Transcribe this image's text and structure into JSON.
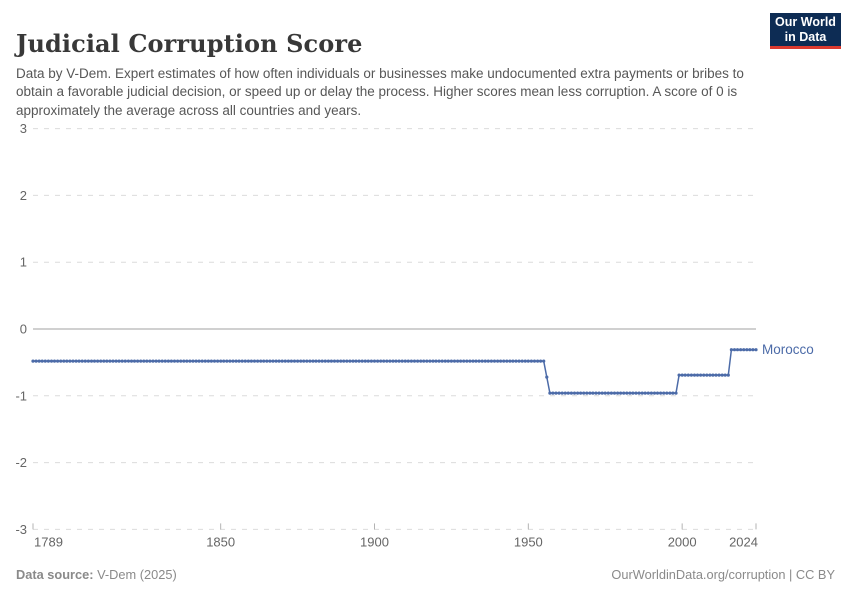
{
  "header": {
    "title": "Judicial Corruption Score",
    "subtitle": "Data by V-Dem. Expert estimates of how often individuals or businesses make undocumented extra payments or bribes to obtain a favorable judicial decision, or speed up or delay the process. Higher scores mean less corruption. A score of 0 is approximately the average across all countries and years.",
    "logo": {
      "line1": "Our World",
      "line2": "in Data",
      "background_color": "#0d2c54",
      "accent_color": "#dc3a2f"
    }
  },
  "footer": {
    "datasource_label": "Data source:",
    "datasource_value": " V-Dem (2025)",
    "credit": "OurWorldinData.org/corruption | CC BY"
  },
  "chart_data": {
    "type": "line",
    "title": "Judicial Corruption Score",
    "xlabel": "",
    "ylabel": "",
    "xlim": [
      1789,
      2024
    ],
    "ylim": [
      -3,
      3
    ],
    "yticks": [
      3,
      2,
      1,
      0,
      -1,
      -2,
      -3
    ],
    "xticks": [
      1789,
      1850,
      1900,
      1950,
      2000,
      2024
    ],
    "grid": "horizontal-dashed",
    "zero_line": true,
    "legend_position": "end-of-line-label",
    "series": [
      {
        "name": "Morocco",
        "color": "#4c6ba8",
        "segments": [
          {
            "start": 1789,
            "end": 1955,
            "value": -0.48
          },
          {
            "start": 1956,
            "end": 1956,
            "value": -0.72
          },
          {
            "start": 1957,
            "end": 1998,
            "value": -0.96
          },
          {
            "start": 1999,
            "end": 2015,
            "value": -0.69
          },
          {
            "start": 2016,
            "end": 2024,
            "value": -0.31
          }
        ]
      }
    ],
    "style": {
      "gridline_color": "#dcdcdc",
      "zero_line_color": "#a1a1a1",
      "tick_color": "#b3b3b3",
      "axis_label_color": "#666666"
    }
  }
}
